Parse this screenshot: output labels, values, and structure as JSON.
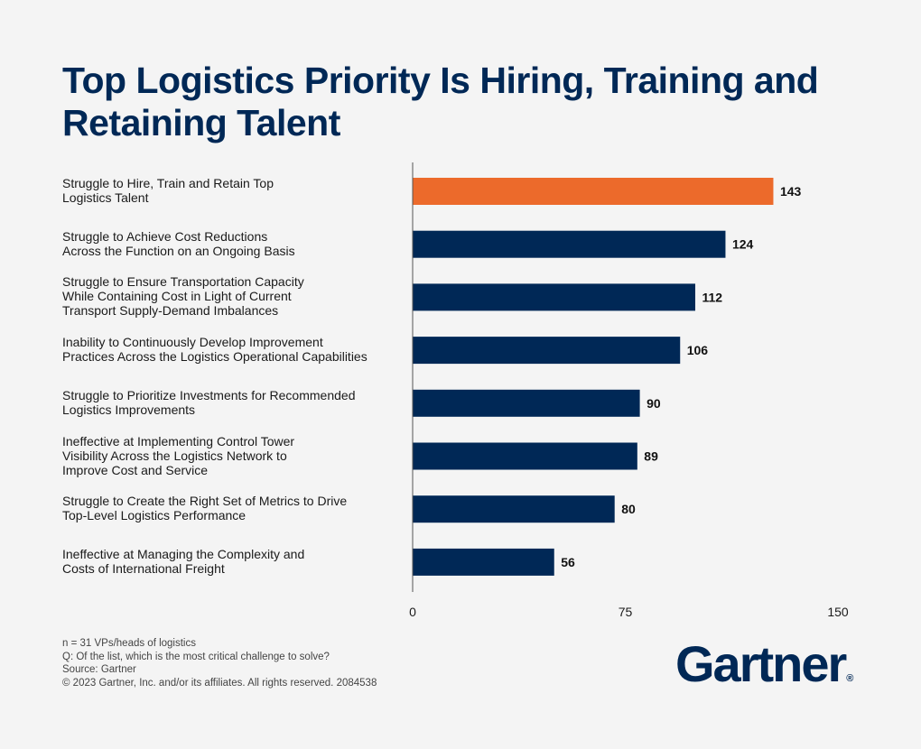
{
  "title": "Top Logistics Priority Is Hiring, Training and Retaining Talent",
  "chart_data": {
    "type": "bar",
    "orientation": "horizontal",
    "categories": [
      "Struggle to Hire, Train and Retain Top Logistics Talent",
      "Struggle to Achieve Cost Reductions Across the Function on an Ongoing Basis",
      "Struggle to Ensure Transportation Capacity While Containing Cost in Light of Current Transport Supply-Demand Imbalances",
      "Inability to Continuously Develop Improvement Practices Across the Logistics Operational Capabilities",
      "Struggle to Prioritize Investments for Recommended Logistics Improvements",
      "Ineffective at Implementing Control Tower Visibility Across the Logistics Network to Improve Cost and Service",
      "Struggle to Create the Right Set of Metrics to Drive Top-Level Logistics Performance",
      "Ineffective at Managing the Complexity and Costs of International Freight"
    ],
    "category_lines": [
      [
        "Struggle to Hire, Train and Retain Top",
        "Logistics Talent"
      ],
      [
        "Struggle to Achieve Cost Reductions",
        "Across the Function on an Ongoing Basis"
      ],
      [
        "Struggle to Ensure Transportation Capacity",
        "While Containing Cost in Light of Current",
        "Transport Supply-Demand Imbalances"
      ],
      [
        "Inability to Continuously Develop Improvement",
        "Practices Across the Logistics Operational Capabilities"
      ],
      [
        "Struggle to Prioritize Investments for Recommended",
        "Logistics Improvements"
      ],
      [
        "Ineffective at Implementing Control Tower",
        "Visibility Across the Logistics Network to",
        "Improve Cost and Service"
      ],
      [
        "Struggle to Create the Right Set of Metrics to Drive",
        "Top-Level Logistics Performance"
      ],
      [
        "Ineffective at Managing the Complexity and",
        "Costs of International Freight"
      ]
    ],
    "values": [
      143,
      124,
      112,
      106,
      90,
      89,
      80,
      56
    ],
    "data_labels": [
      "143",
      "124",
      "112",
      "106",
      "90",
      "89",
      "80",
      "56"
    ],
    "highlight_index": 0,
    "colors": {
      "highlight": "#ec6a2b",
      "default": "#002856"
    },
    "xticks": [
      "0",
      "75",
      "150"
    ],
    "xlim": [
      0,
      150
    ],
    "grid": false,
    "legend": "none",
    "xlabel": "",
    "ylabel": ""
  },
  "footer": [
    "n = 31 VPs/heads of logistics",
    "Q: Of the list, which is the most critical challenge to solve?",
    "Source: Gartner",
    "© 2023 Gartner, Inc. and/or its affiliates. All rights reserved. 2084538"
  ],
  "logo": {
    "text": "Gartner",
    "mark": "®"
  }
}
